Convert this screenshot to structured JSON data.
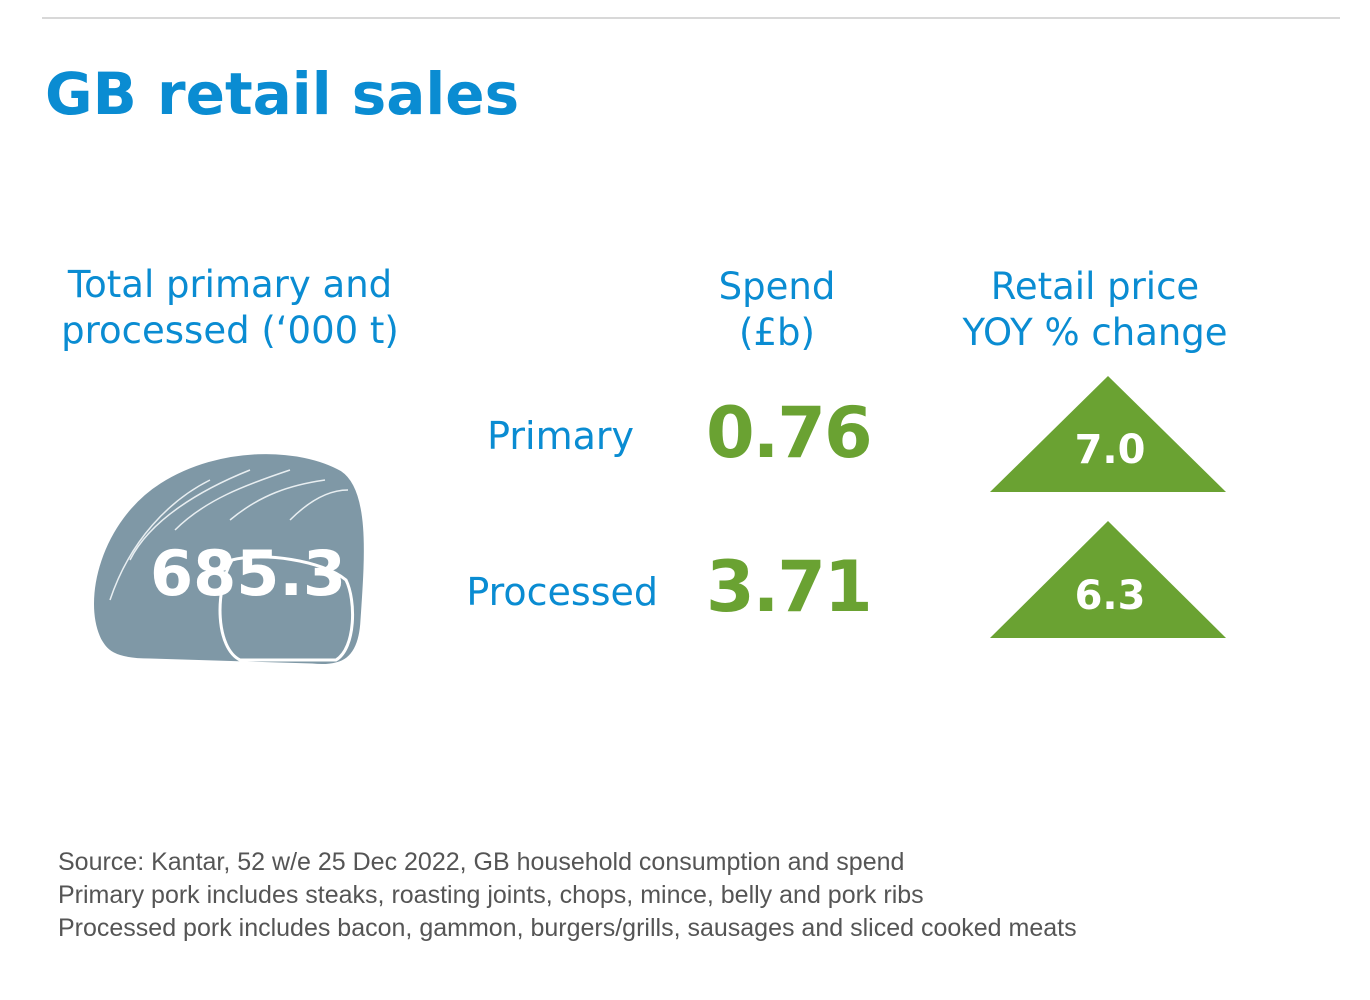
{
  "header": {
    "title": "GB retail sales"
  },
  "volume": {
    "heading": [
      "Total primary and",
      "processed (‘000 t)"
    ],
    "value": "685.3"
  },
  "spend_heading": [
    "Spend",
    "(£b)"
  ],
  "price_heading": [
    "Retail price",
    "YOY % change"
  ],
  "rows": [
    {
      "label": "Primary",
      "spend": "0.76",
      "price_change": "7.0"
    },
    {
      "label": "Processed",
      "spend": "3.71",
      "price_change": "6.3"
    }
  ],
  "notes": [
    "Source: Kantar, 52 w/e 25 Dec 2022, GB household consumption and spend",
    "Primary pork includes steaks, roasting joints, chops, mince, belly and pork ribs",
    "Processed pork includes bacon, gammon, burgers/grills, sausages and sliced cooked meats"
  ]
}
